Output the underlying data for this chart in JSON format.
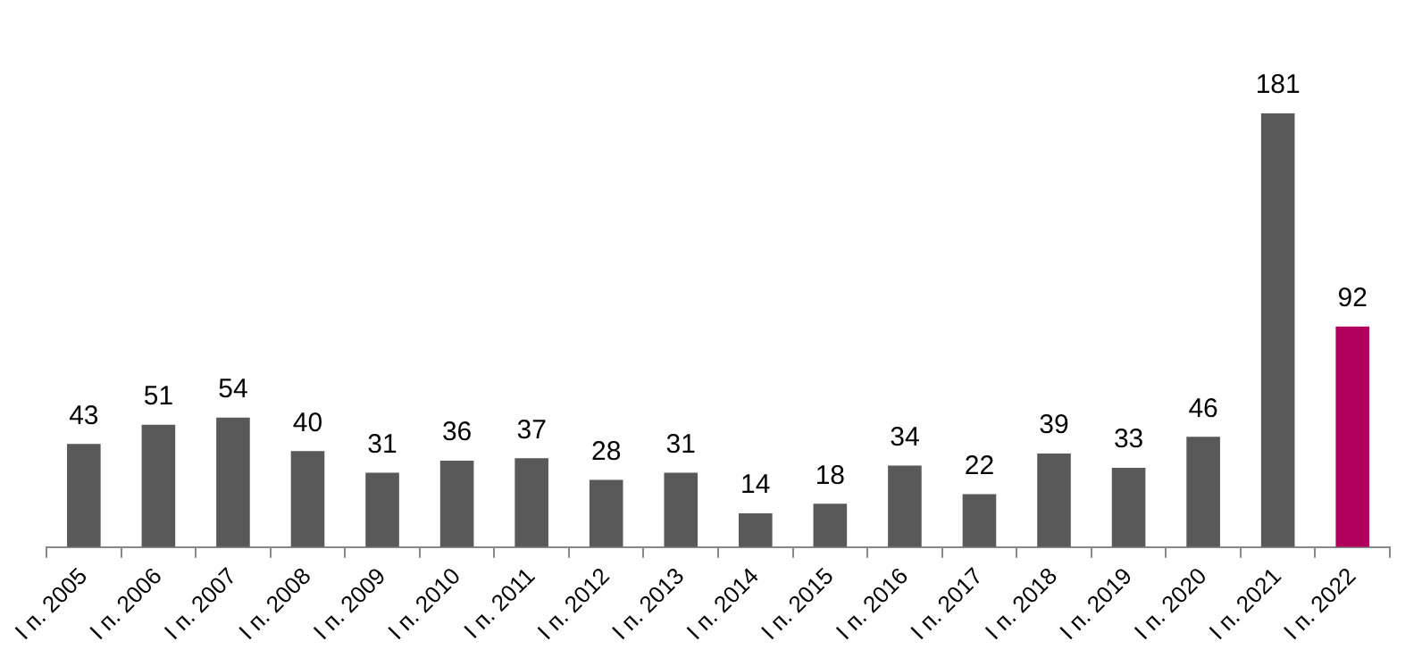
{
  "chart_data": {
    "type": "bar",
    "categories": [
      "I п. 2005",
      "I п. 2006",
      "I п. 2007",
      "I п. 2008",
      "I п. 2009",
      "I п. 2010",
      "I п. 2011",
      "I п. 2012",
      "I п. 2013",
      "I п. 2014",
      "I п. 2015",
      "I п. 2016",
      "I п. 2017",
      "I п. 2018",
      "I п. 2019",
      "I п. 2020",
      "I п. 2021",
      "I п. 2022"
    ],
    "values": [
      43,
      51,
      54,
      40,
      31,
      36,
      37,
      28,
      31,
      14,
      18,
      34,
      22,
      39,
      33,
      46,
      181,
      92
    ],
    "colors": [
      "#595959",
      "#595959",
      "#595959",
      "#595959",
      "#595959",
      "#595959",
      "#595959",
      "#595959",
      "#595959",
      "#595959",
      "#595959",
      "#595959",
      "#595959",
      "#595959",
      "#595959",
      "#595959",
      "#595959",
      "#b0005c"
    ],
    "data_labels": true,
    "grid": false,
    "legend": false
  }
}
